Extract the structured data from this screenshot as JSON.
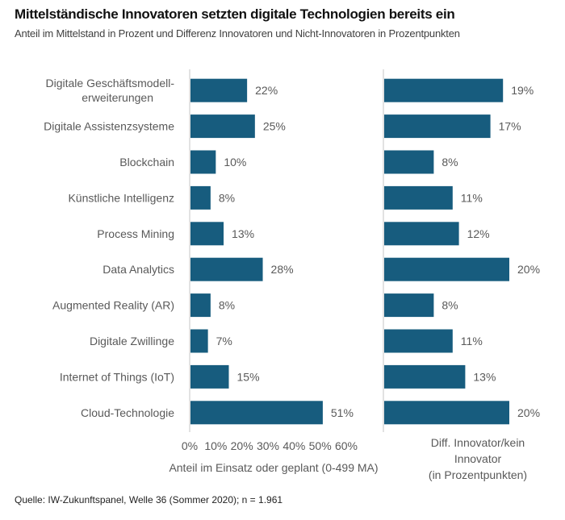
{
  "title": "Mittelständische Innovatoren setzten digitale Technologien bereits ein",
  "subtitle": "Anteil im Mittelstand in Prozent und Differenz Innovatoren und Nicht-Innovatoren in Prozentpunkten",
  "source": "Quelle: IW-Zukunftspanel, Welle 36 (Sommer 2020); n = 1.961",
  "colors": {
    "bar": "#175C7E",
    "axis": "#D9D9D9",
    "text": "#595959"
  },
  "chart_data": [
    {
      "type": "bar",
      "orientation": "horizontal",
      "title": "",
      "categories": [
        [
          "Digitale Geschäftsmodell-",
          "erweiterungen"
        ],
        [
          "Digitale Assistenzsysteme"
        ],
        [
          "Blockchain"
        ],
        [
          "Künstliche Intelligenz"
        ],
        [
          "Process Mining"
        ],
        [
          "Data Analytics"
        ],
        [
          "Augmented Reality (AR)"
        ],
        [
          "Digitale Zwillinge"
        ],
        [
          "Internet of Things (IoT)"
        ],
        [
          "Cloud-Technologie"
        ]
      ],
      "values": [
        22,
        25,
        10,
        8,
        13,
        28,
        8,
        7,
        15,
        51
      ],
      "data_labels": [
        "22%",
        "25%",
        "10%",
        "8%",
        "13%",
        "28%",
        "8%",
        "7%",
        "15%",
        "51%"
      ],
      "xlabel": "Anteil im Einsatz oder geplant (0-499 MA)",
      "xlim": [
        0,
        60
      ],
      "xticks": [
        0,
        10,
        20,
        30,
        40,
        50,
        60
      ],
      "xtick_labels": [
        "0%",
        "10%",
        "20%",
        "30%",
        "40%",
        "50%",
        "60%"
      ],
      "grid": false,
      "legend": "none"
    },
    {
      "type": "bar",
      "orientation": "horizontal",
      "title": "",
      "categories": [
        "Digitale Geschäftsmodell-erweiterungen",
        "Digitale Assistenzsysteme",
        "Blockchain",
        "Künstliche Intelligenz",
        "Process Mining",
        "Data Analytics",
        "Augmented Reality (AR)",
        "Digitale Zwillinge",
        "Internet of Things (IoT)",
        "Cloud-Technologie"
      ],
      "values": [
        19,
        17,
        8,
        11,
        12,
        20,
        8,
        11,
        13,
        20
      ],
      "data_labels": [
        "19%",
        "17%",
        "8%",
        "11%",
        "12%",
        "20%",
        "8%",
        "11%",
        "13%",
        "20%"
      ],
      "xlabel": [
        "Diff. Innovator/kein",
        "Innovator",
        "(in Prozentpunkten)"
      ],
      "xlim": [
        0,
        20
      ],
      "grid": false,
      "legend": "none"
    }
  ]
}
